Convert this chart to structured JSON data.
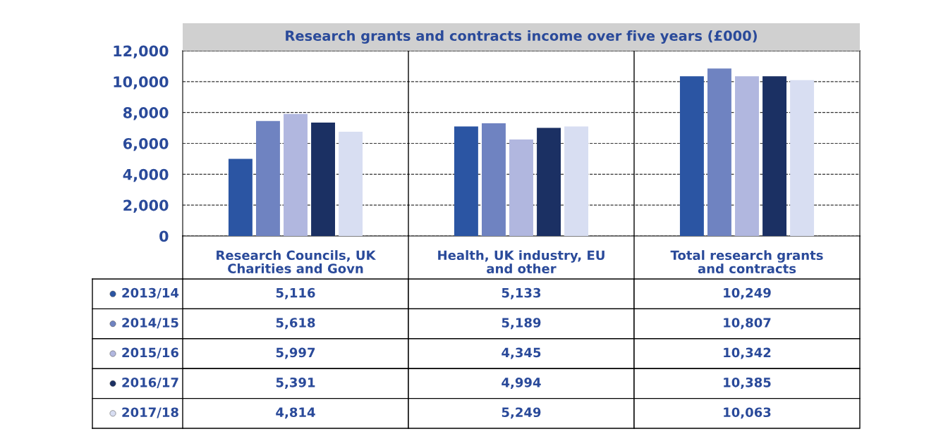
{
  "chart_data": [
    {
      "type": "bar",
      "title": "Research grants and contracts income over five years (£000)",
      "categories": [
        "Research Councils, UK\nCharities and Govn",
        "Health, UK industry, EU\nand other",
        "Total research grants\nand contracts"
      ],
      "series": [
        {
          "name": "2013/14",
          "color": "#2b55a3",
          "values": [
            5000,
            7100,
            10350
          ]
        },
        {
          "name": "2014/15",
          "color": "#6f83c1",
          "values": [
            7450,
            7300,
            10850
          ]
        },
        {
          "name": "2015/16",
          "color": "#b1b7df",
          "values": [
            7900,
            6250,
            10350
          ]
        },
        {
          "name": "2016/17",
          "color": "#1b3063",
          "values": [
            7350,
            7000,
            10350
          ]
        },
        {
          "name": "2017/18",
          "color": "#d8def2",
          "values": [
            6750,
            7100,
            10100
          ]
        }
      ],
      "ylim": [
        0,
        12000
      ],
      "yticks": [
        {
          "value": 0,
          "label": "0"
        },
        {
          "value": 2000,
          "label": "2,000"
        },
        {
          "value": 4000,
          "label": "4,000"
        },
        {
          "value": 6000,
          "label": "6,000"
        },
        {
          "value": 8000,
          "label": "8,000"
        },
        {
          "value": 10000,
          "label": "10,000"
        },
        {
          "value": 12000,
          "label": "12,000"
        }
      ],
      "grid": "y",
      "line_style": "dashed",
      "legend": "bottom left"
    },
    {
      "type": "other",
      "annotations": [
        "5,116",
        "5,133",
        "10,249",
        "5,618",
        "5,189",
        "10,807",
        "5,997",
        "4,345",
        "10,342",
        "5,391",
        "4,994",
        "10,385",
        "4,814",
        "5,249",
        "10,063"
      ]
    }
  ]
}
